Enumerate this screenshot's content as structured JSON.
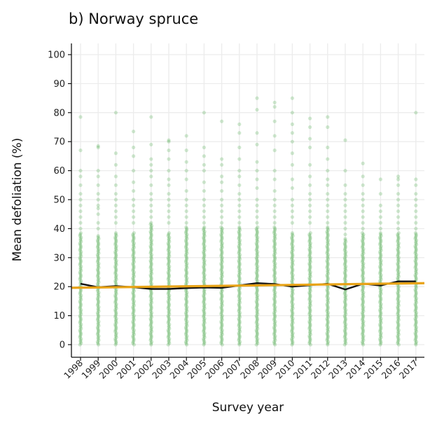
{
  "chart_data": {
    "type": "scatter",
    "title": "b) Norway spruce",
    "xlabel": "Survey year",
    "ylabel": "Mean defoliation (%)",
    "ylim": [
      0,
      100
    ],
    "yticks": [
      0,
      10,
      20,
      30,
      40,
      50,
      60,
      70,
      80,
      90,
      100
    ],
    "categories": [
      "1998",
      "1999",
      "2000",
      "2001",
      "2002",
      "2003",
      "2004",
      "2005",
      "2006",
      "2007",
      "2008",
      "2009",
      "2010",
      "2011",
      "2012",
      "2013",
      "2014",
      "2015",
      "2016",
      "2017"
    ],
    "grid": true,
    "legend": "none",
    "mean_line": {
      "color": "#111111",
      "values": [
        21,
        19.8,
        20.2,
        19.8,
        19.2,
        19.2,
        19.5,
        19.7,
        19.6,
        20.4,
        21.2,
        20.9,
        20.0,
        20.5,
        21.0,
        19.0,
        21.0,
        20.4,
        21.8,
        21.8
      ]
    },
    "trend_line": {
      "color": "#e8a317",
      "start": 19.6,
      "end": 21.2
    },
    "points": {
      "color": "#2a9a2a",
      "dense_range_top": [
        38,
        37,
        38,
        38,
        41,
        38,
        40,
        40,
        40,
        40,
        40,
        40,
        38,
        38,
        40,
        36,
        38,
        38,
        38,
        38
      ],
      "upper_values": [
        [
          78.5,
          67,
          60,
          58,
          55,
          52,
          50,
          48,
          46,
          44,
          42,
          40
        ],
        [
          68.5,
          68,
          60,
          58,
          55,
          52,
          50,
          48,
          47,
          45,
          42,
          40
        ],
        [
          80,
          66,
          62,
          58,
          55,
          52,
          50,
          48,
          46,
          44,
          42
        ],
        [
          73.5,
          68,
          65,
          60,
          56,
          53,
          50,
          48,
          46,
          44,
          42
        ],
        [
          78.5,
          69,
          64,
          62,
          60,
          58,
          55,
          52,
          50,
          48,
          46,
          44,
          42
        ],
        [
          70.5,
          70,
          67,
          64,
          60,
          57,
          55,
          52,
          50,
          48,
          46,
          44,
          42
        ],
        [
          72,
          67,
          63,
          60,
          57,
          53,
          50,
          48,
          46,
          44,
          42
        ],
        [
          80,
          68,
          65,
          62,
          60,
          56,
          53,
          50,
          48,
          46,
          44,
          42
        ],
        [
          77,
          64,
          62,
          58,
          56,
          53,
          50,
          48,
          46,
          44,
          42
        ],
        [
          76,
          73,
          68,
          64,
          60,
          58,
          55,
          52,
          50,
          48,
          46,
          44,
          42
        ],
        [
          85,
          81,
          73,
          69,
          63,
          60,
          57,
          54,
          50,
          48,
          46,
          44,
          42
        ],
        [
          83.5,
          82,
          77,
          72,
          67,
          60,
          57,
          53,
          50,
          48,
          46,
          44,
          42
        ],
        [
          85,
          80,
          76,
          73,
          70,
          66,
          62,
          57,
          54,
          50,
          48,
          46,
          44,
          42
        ],
        [
          78,
          75,
          71,
          68,
          62,
          58,
          55,
          52,
          50,
          48,
          46,
          44,
          42
        ],
        [
          78.5,
          75,
          68,
          64,
          60,
          57,
          55,
          52,
          50,
          48,
          46,
          44,
          42
        ],
        [
          70.5,
          60,
          55,
          52,
          50,
          48,
          46,
          44,
          42,
          40,
          38
        ],
        [
          62.5,
          58,
          55,
          52,
          50,
          48,
          46,
          44,
          42,
          40
        ],
        [
          57,
          52,
          48,
          46,
          44,
          42,
          40
        ],
        [
          58,
          57,
          55,
          52,
          50,
          48,
          46,
          44,
          42,
          40
        ],
        [
          80,
          57,
          55,
          52,
          50,
          48,
          46,
          44,
          42,
          40
        ]
      ]
    }
  }
}
